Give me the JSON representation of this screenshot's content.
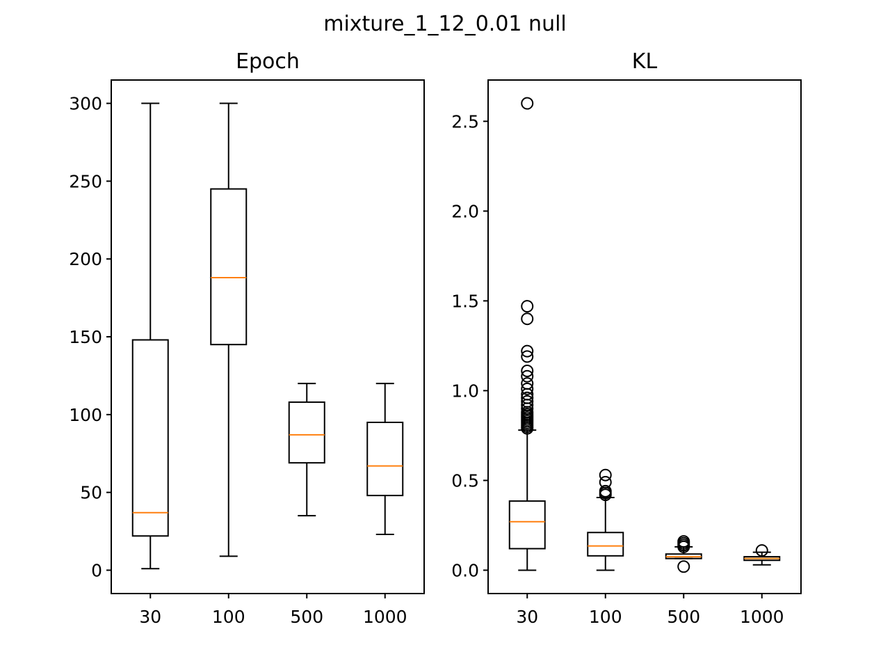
{
  "figure": {
    "suptitle": "mixture_1_12_0.01 null"
  },
  "chart_data": [
    {
      "type": "box",
      "title": "Epoch",
      "xlabel": "",
      "ylabel": "",
      "categories": [
        "30",
        "100",
        "500",
        "1000"
      ],
      "ylim": [
        -15,
        315
      ],
      "yticks": [
        0,
        50,
        100,
        150,
        200,
        250,
        300
      ],
      "ytick_labels": [
        "0",
        "50",
        "100",
        "150",
        "200",
        "250",
        "300"
      ],
      "boxes": [
        {
          "category": "30",
          "whislo": 1,
          "q1": 22,
          "med": 37,
          "q3": 148,
          "whishi": 300,
          "fliers": []
        },
        {
          "category": "100",
          "whislo": 9,
          "q1": 145,
          "med": 188,
          "q3": 245,
          "whishi": 300,
          "fliers": []
        },
        {
          "category": "500",
          "whislo": 35,
          "q1": 69,
          "med": 87,
          "q3": 108,
          "whishi": 120,
          "fliers": []
        },
        {
          "category": "1000",
          "whislo": 23,
          "q1": 48,
          "med": 67,
          "q3": 95,
          "whishi": 120,
          "fliers": []
        }
      ]
    },
    {
      "type": "box",
      "title": "KL",
      "xlabel": "",
      "ylabel": "",
      "categories": [
        "30",
        "100",
        "500",
        "1000"
      ],
      "ylim": [
        -0.13,
        2.73
      ],
      "yticks": [
        0.0,
        0.5,
        1.0,
        1.5,
        2.0,
        2.5
      ],
      "ytick_labels": [
        "0.0",
        "0.5",
        "1.0",
        "1.5",
        "2.0",
        "2.5"
      ],
      "boxes": [
        {
          "category": "30",
          "whislo": 0.0,
          "q1": 0.12,
          "med": 0.27,
          "q3": 0.385,
          "whishi": 0.78,
          "fliers": [
            0.79,
            0.8,
            0.81,
            0.82,
            0.83,
            0.84,
            0.85,
            0.86,
            0.87,
            0.88,
            0.9,
            0.92,
            0.94,
            0.96,
            0.98,
            1.01,
            1.04,
            1.08,
            1.11,
            1.19,
            1.22,
            1.4,
            1.47,
            2.6
          ]
        },
        {
          "category": "100",
          "whislo": 0.0,
          "q1": 0.08,
          "med": 0.135,
          "q3": 0.21,
          "whishi": 0.405,
          "fliers": [
            0.42,
            0.43,
            0.44,
            0.49,
            0.53
          ]
        },
        {
          "category": "500",
          "whislo": 0.065,
          "q1": 0.065,
          "med": 0.075,
          "q3": 0.09,
          "whishi": 0.13,
          "fliers": [
            0.02,
            0.13,
            0.14,
            0.15,
            0.16
          ]
        },
        {
          "category": "1000",
          "whislo": 0.03,
          "q1": 0.055,
          "med": 0.065,
          "q3": 0.075,
          "whishi": 0.1,
          "fliers": [
            0.11
          ]
        }
      ]
    }
  ]
}
